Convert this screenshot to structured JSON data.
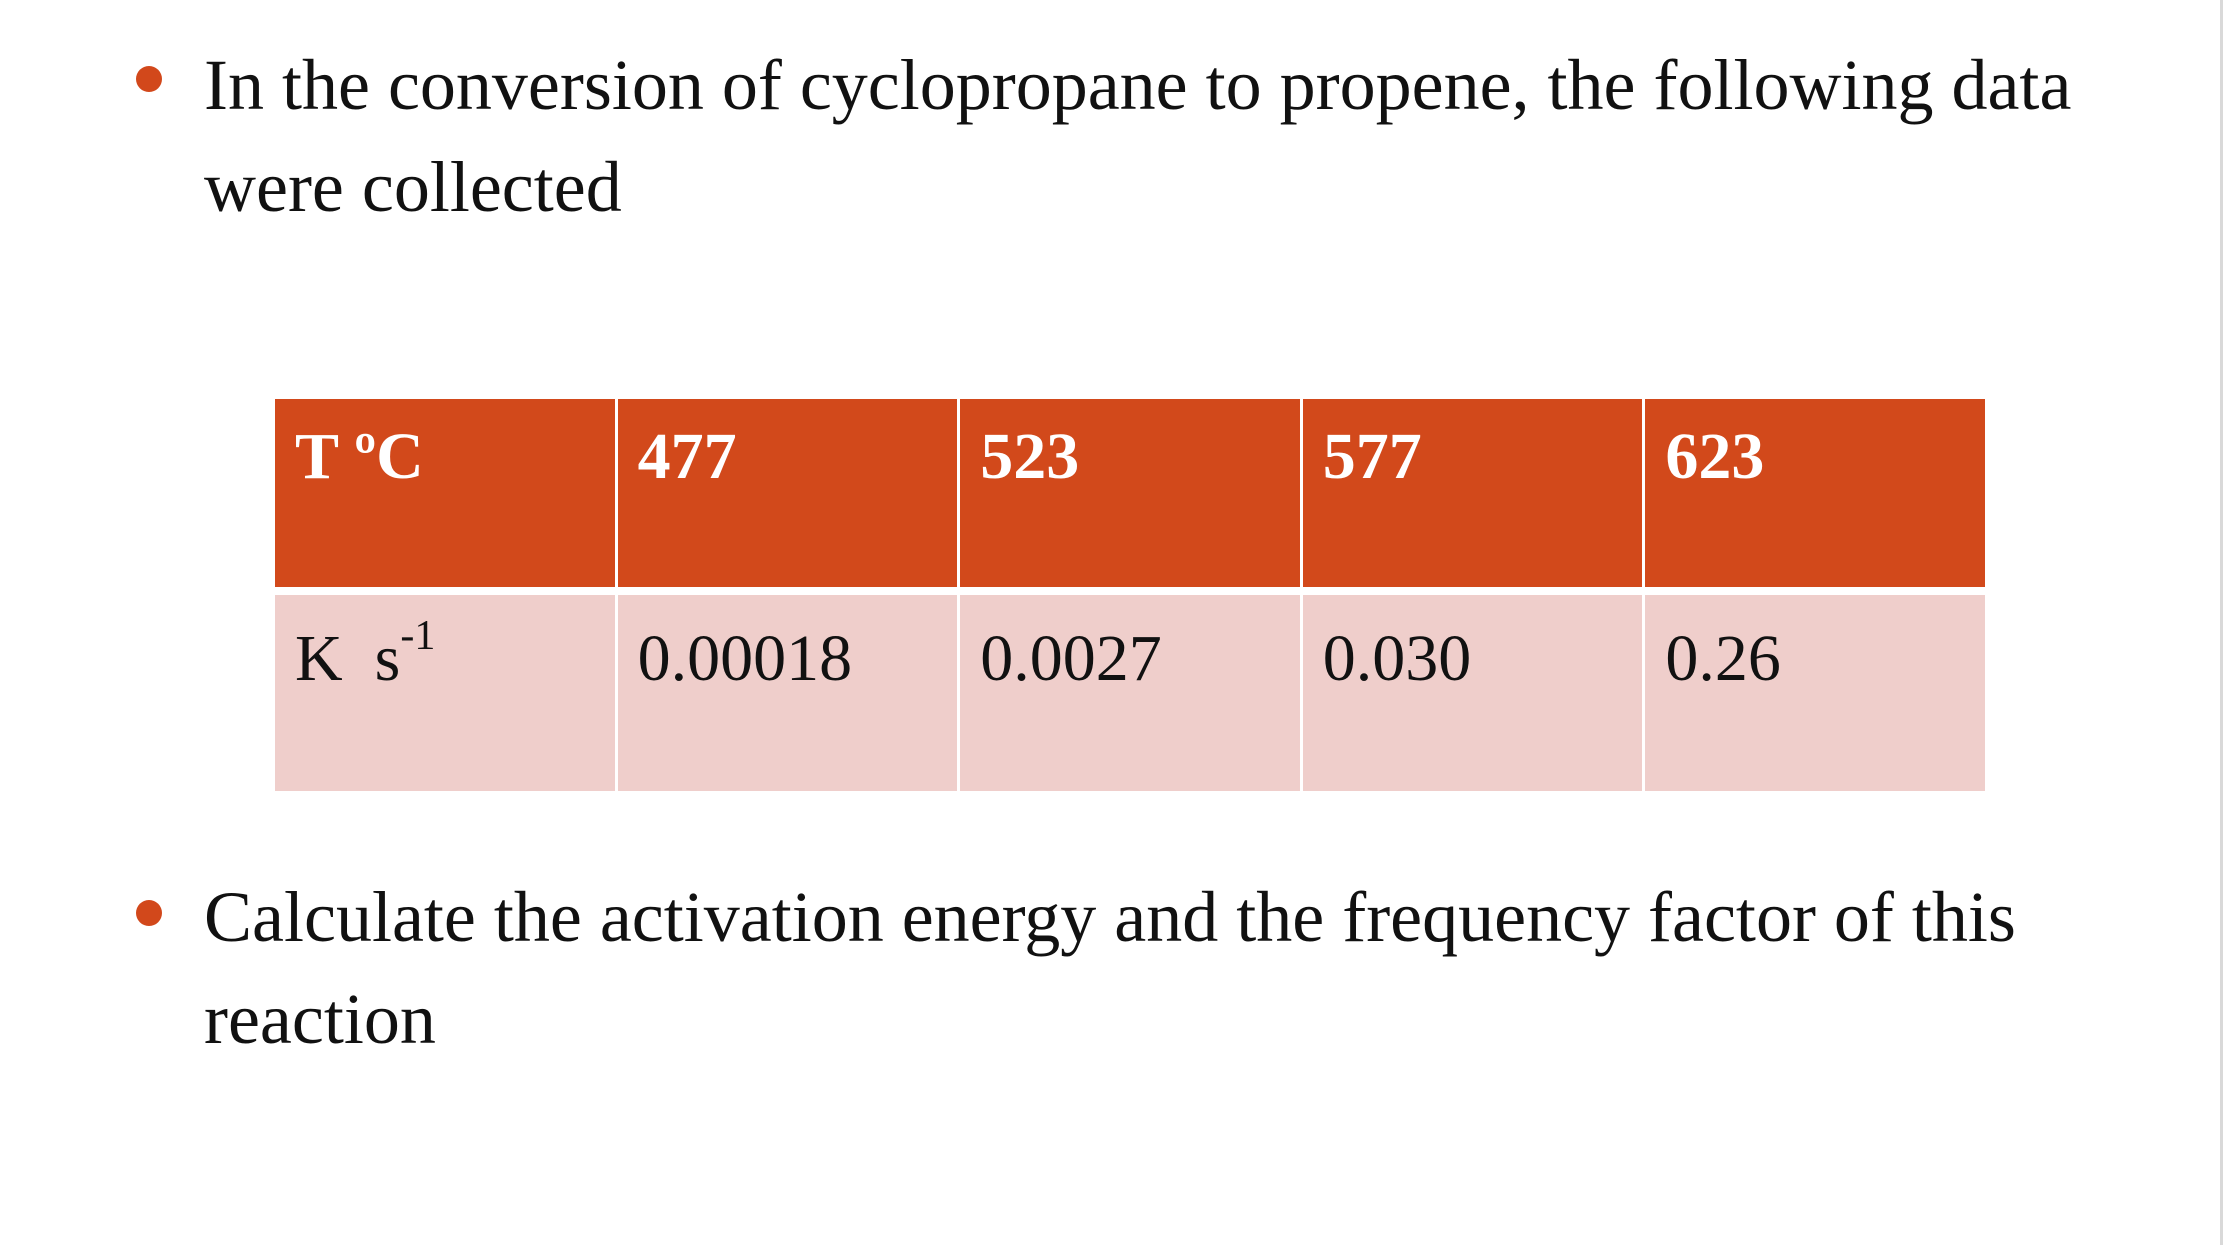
{
  "slide": {
    "bullets": [
      "In the conversion of cyclopropane to propene, the following data were collected",
      "Calculate the activation energy and the frequency factor of this reaction"
    ],
    "table": {
      "row_header_temperature": "T ºC",
      "temperatures": [
        "477",
        "523",
        "577",
        "623"
      ],
      "row_header_rate_main": "K",
      "row_header_rate_unit": "s",
      "row_header_rate_exponent": "-1",
      "rate_constants": [
        "0.00018",
        "0.0027",
        "0.030",
        "0.26"
      ]
    },
    "colors": {
      "accent": "#d2491b",
      "row_fill": "#efcecb",
      "text": "#111111"
    },
    "icons": {
      "bullet": "bullet-dot-icon"
    }
  }
}
